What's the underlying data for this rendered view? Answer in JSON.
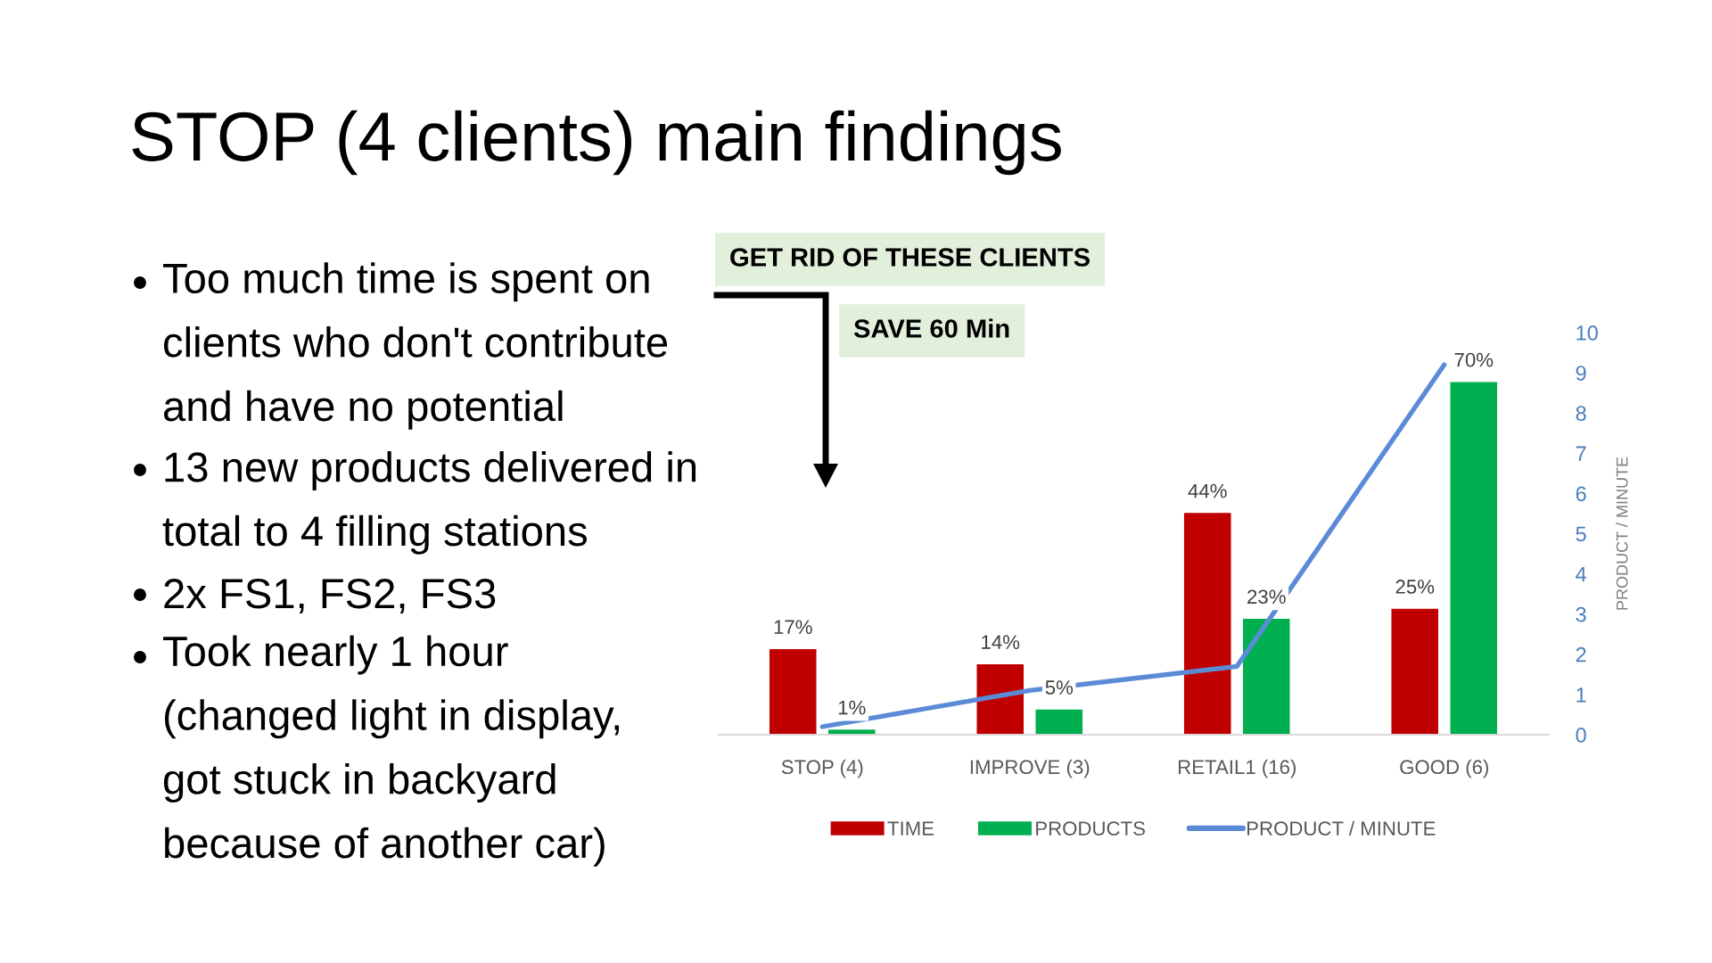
{
  "chart_data": {
    "type": "bar",
    "title": "STOP (4 clients) main findings",
    "categories": [
      "STOP (4)",
      "IMPROVE (3)",
      "RETAIL1 (16)",
      "GOOD (6)"
    ],
    "series": [
      {
        "name": "TIME",
        "color": "#c00000",
        "values": [
          17,
          14,
          44,
          25
        ],
        "value_labels": [
          "17%",
          "14%",
          "44%",
          "25%"
        ]
      },
      {
        "name": "PRODUCTS",
        "color": "#00b050",
        "values": [
          1,
          5,
          23,
          70
        ],
        "value_labels": [
          "1%",
          "5%",
          "23%",
          "70%"
        ]
      },
      {
        "name": "PRODUCT / MINUTE",
        "type": "line",
        "axis": "y2",
        "color": "#5b8bd6",
        "values": [
          0.2,
          1.1,
          1.7,
          9.2
        ]
      }
    ],
    "y2lim": [
      0,
      10
    ],
    "y2ticks": [
      0,
      1,
      2,
      3,
      4,
      5,
      6,
      7,
      8,
      9,
      10
    ],
    "y2label": "PRODUCT / MINUTE",
    "legend": "bottom",
    "annotations": [
      "Too much time is spent on\nclients who don't contribute\nand have no potential",
      "13 new products delivered in\ntotal to 4 filling stations",
      "2x FS1, FS2, FS3",
      "Took nearly 1 hour\n(changed light in display,\ngot stuck in backyard\nbecause of another car)",
      "GET RID OF THESE CLIENTS",
      "SAVE 60 Min"
    ]
  }
}
